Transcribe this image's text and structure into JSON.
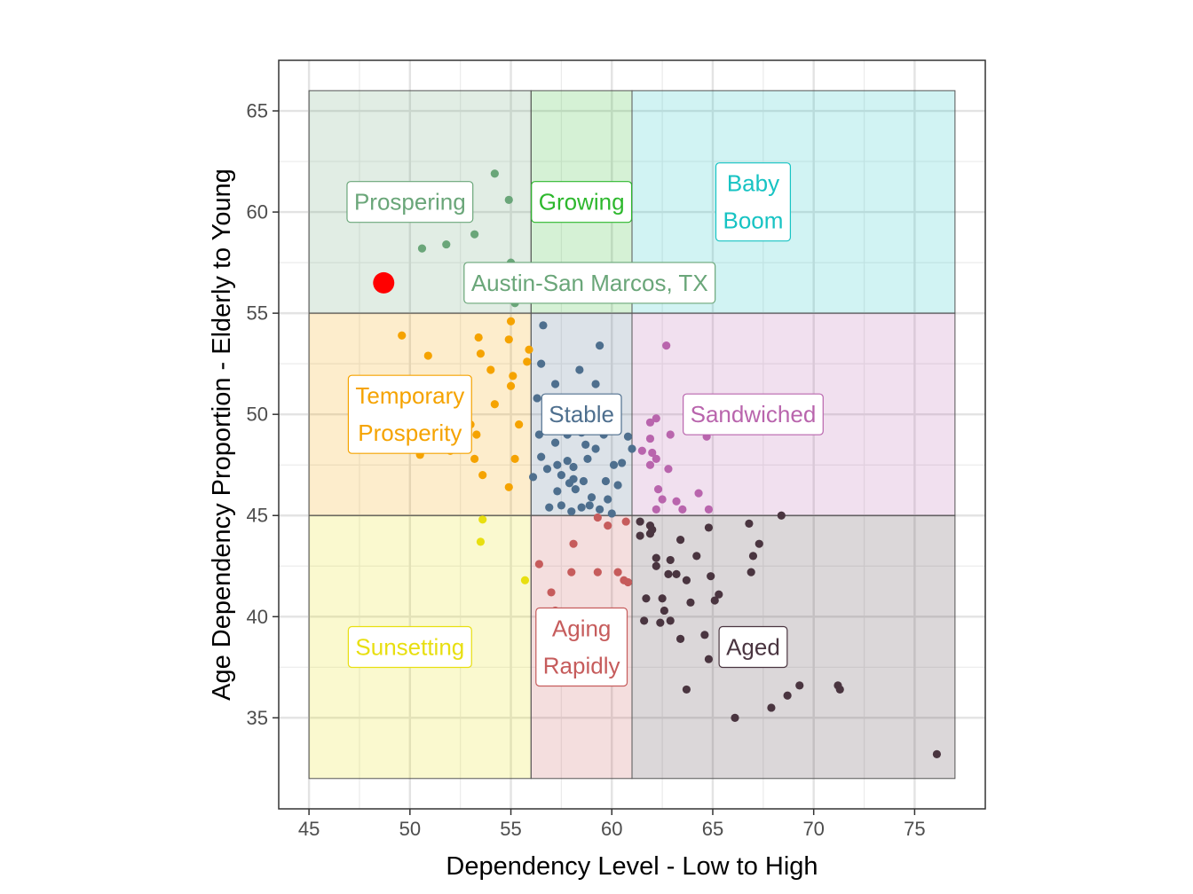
{
  "chart_data": {
    "type": "scatter",
    "title": "",
    "xlabel": "Dependency Level - Low to High",
    "ylabel": "Age Dependency Proportion - Elderly to Young",
    "xlim": [
      43.5,
      78.5
    ],
    "ylim": [
      30.5,
      67.5
    ],
    "xticks": [
      45,
      50,
      55,
      60,
      65,
      70,
      75
    ],
    "yticks": [
      35,
      40,
      45,
      50,
      55,
      60,
      65
    ],
    "grid": true,
    "regions": [
      {
        "label": "Prospering",
        "color": "#6aa679",
        "x": [
          45,
          56
        ],
        "y": [
          55,
          66
        ],
        "label_pos": [
          50,
          60.5
        ],
        "label_lines": [
          "Prospering"
        ]
      },
      {
        "label": "Growing",
        "color": "#2db82d",
        "x": [
          56,
          61
        ],
        "y": [
          55,
          66
        ],
        "label_pos": [
          58.5,
          60.5
        ],
        "label_lines": [
          "Growing"
        ]
      },
      {
        "label": "Baby Boom",
        "color": "#17c3c3",
        "x": [
          61,
          77
        ],
        "y": [
          55,
          66
        ],
        "label_pos": [
          67,
          60.5
        ],
        "label_lines": [
          "Baby",
          "Boom"
        ]
      },
      {
        "label": "Temporary Prosperity",
        "color": "#f5a300",
        "x": [
          45,
          56
        ],
        "y": [
          45,
          55
        ],
        "label_pos": [
          50,
          50
        ],
        "label_lines": [
          "Temporary",
          "Prosperity"
        ]
      },
      {
        "label": "Stable",
        "color": "#4e6f8e",
        "x": [
          56,
          61
        ],
        "y": [
          45,
          55
        ],
        "label_pos": [
          58.5,
          50
        ],
        "label_lines": [
          "Stable"
        ]
      },
      {
        "label": "Sandwiched",
        "color": "#b965ad",
        "x": [
          61,
          77
        ],
        "y": [
          45,
          55
        ],
        "label_pos": [
          67,
          50
        ],
        "label_lines": [
          "Sandwiched"
        ]
      },
      {
        "label": "Sunsetting",
        "color": "#e8df10",
        "x": [
          45,
          56
        ],
        "y": [
          32,
          45
        ],
        "label_pos": [
          50,
          38.5
        ],
        "label_lines": [
          "Sunsetting"
        ]
      },
      {
        "label": "Aging Rapidly",
        "color": "#c65c5c",
        "x": [
          56,
          61
        ],
        "y": [
          32,
          45
        ],
        "label_pos": [
          58.5,
          38.5
        ],
        "label_lines": [
          "Aging",
          "Rapidly"
        ]
      },
      {
        "label": "Aged",
        "color": "#4a3540",
        "x": [
          61,
          77
        ],
        "y": [
          32,
          45
        ],
        "label_pos": [
          67,
          38.5
        ],
        "label_lines": [
          "Aged"
        ]
      }
    ],
    "highlight": {
      "label": "Austin-San Marcos, TX",
      "x": 48.7,
      "y": 56.5,
      "color": "#ff0000",
      "label_color": "#6aa679",
      "label_pos": [
        58.9,
        56.5
      ]
    },
    "series": [
      {
        "name": "Prospering",
        "color": "#6aa679",
        "points": [
          [
            54.2,
            61.9
          ],
          [
            54.9,
            60.6
          ],
          [
            53.2,
            58.9
          ],
          [
            51.8,
            58.4
          ],
          [
            50.6,
            58.2
          ],
          [
            55.0,
            57.5
          ],
          [
            55.1,
            57.0
          ],
          [
            55.2,
            55.5
          ]
        ]
      },
      {
        "name": "Temporary Prosperity",
        "color": "#f5a300",
        "points": [
          [
            49.6,
            53.9
          ],
          [
            53.4,
            53.8
          ],
          [
            54.9,
            53.7
          ],
          [
            55.0,
            54.6
          ],
          [
            55.9,
            53.2
          ],
          [
            53.5,
            53.0
          ],
          [
            50.9,
            52.9
          ],
          [
            55.8,
            52.6
          ],
          [
            54.0,
            52.2
          ],
          [
            55.1,
            51.9
          ],
          [
            55.0,
            51.4
          ],
          [
            54.2,
            50.5
          ],
          [
            52.0,
            50.1
          ],
          [
            50.8,
            49.3
          ],
          [
            53.3,
            49.0
          ],
          [
            51.4,
            48.5
          ],
          [
            52.0,
            48.2
          ],
          [
            50.5,
            48.0
          ],
          [
            53.2,
            47.8
          ],
          [
            55.2,
            47.8
          ],
          [
            53.6,
            47.0
          ],
          [
            54.9,
            46.4
          ],
          [
            55.4,
            49.5
          ],
          [
            53.0,
            49.5
          ],
          [
            52.6,
            49.8
          ]
        ]
      },
      {
        "name": "Stable",
        "color": "#4e6f8e",
        "points": [
          [
            56.6,
            54.4
          ],
          [
            59.4,
            53.4
          ],
          [
            56.5,
            52.5
          ],
          [
            58.4,
            52.2
          ],
          [
            57.2,
            51.5
          ],
          [
            59.2,
            51.5
          ],
          [
            56.3,
            50.8
          ],
          [
            57.8,
            50.6
          ],
          [
            60.2,
            50.7
          ],
          [
            56.9,
            50.4
          ],
          [
            58.5,
            50.6
          ],
          [
            59.5,
            50.2
          ],
          [
            57.1,
            49.9
          ],
          [
            58.9,
            49.8
          ],
          [
            56.4,
            49.0
          ],
          [
            56.8,
            49.2
          ],
          [
            57.8,
            49.0
          ],
          [
            58.5,
            49.1
          ],
          [
            59.6,
            49.0
          ],
          [
            60.8,
            48.9
          ],
          [
            57.2,
            48.6
          ],
          [
            58.7,
            48.5
          ],
          [
            59.2,
            48.3
          ],
          [
            61.0,
            48.3
          ],
          [
            56.5,
            47.9
          ],
          [
            57.8,
            47.7
          ],
          [
            58.8,
            47.8
          ],
          [
            57.3,
            47.5
          ],
          [
            58.1,
            47.4
          ],
          [
            60.1,
            47.5
          ],
          [
            60.5,
            47.6
          ],
          [
            56.8,
            47.3
          ],
          [
            57.5,
            47.0
          ],
          [
            58.1,
            46.8
          ],
          [
            56.1,
            46.9
          ],
          [
            57.9,
            46.6
          ],
          [
            58.6,
            46.7
          ],
          [
            59.7,
            46.7
          ],
          [
            60.3,
            46.5
          ],
          [
            57.3,
            46.2
          ],
          [
            58.2,
            46.3
          ],
          [
            59.0,
            45.9
          ],
          [
            59.8,
            45.8
          ],
          [
            56.9,
            45.4
          ],
          [
            57.5,
            45.5
          ],
          [
            58.0,
            45.2
          ],
          [
            58.5,
            45.4
          ],
          [
            59.4,
            45.3
          ],
          [
            60.0,
            45.1
          ],
          [
            58.9,
            45.5
          ]
        ]
      },
      {
        "name": "Sandwiched",
        "color": "#b965ad",
        "points": [
          [
            62.7,
            53.4
          ],
          [
            62.2,
            49.8
          ],
          [
            61.9,
            49.6
          ],
          [
            62.9,
            49.0
          ],
          [
            64.7,
            48.9
          ],
          [
            61.9,
            48.8
          ],
          [
            61.5,
            48.2
          ],
          [
            62.0,
            48.1
          ],
          [
            62.2,
            47.8
          ],
          [
            61.9,
            47.5
          ],
          [
            62.8,
            47.3
          ],
          [
            62.3,
            46.3
          ],
          [
            64.3,
            46.1
          ],
          [
            62.5,
            45.8
          ],
          [
            64.8,
            45.3
          ],
          [
            62.2,
            45.3
          ],
          [
            63.5,
            45.3
          ],
          [
            63.2,
            45.7
          ]
        ]
      },
      {
        "name": "Sunsetting",
        "color": "#e8df10",
        "points": [
          [
            53.6,
            44.8
          ],
          [
            53.5,
            43.7
          ],
          [
            55.7,
            41.8
          ]
        ]
      },
      {
        "name": "Aging Rapidly",
        "color": "#c65c5c",
        "points": [
          [
            59.3,
            44.9
          ],
          [
            60.7,
            44.7
          ],
          [
            59.8,
            44.5
          ],
          [
            58.1,
            43.6
          ],
          [
            56.4,
            42.6
          ],
          [
            58.0,
            42.2
          ],
          [
            59.3,
            42.2
          ],
          [
            60.3,
            42.2
          ],
          [
            60.6,
            41.8
          ],
          [
            60.8,
            41.7
          ],
          [
            57.0,
            41.2
          ],
          [
            57.2,
            40.3
          ]
        ]
      },
      {
        "name": "Aged",
        "color": "#4a3540",
        "points": [
          [
            68.4,
            45.0
          ],
          [
            61.4,
            44.7
          ],
          [
            66.8,
            44.6
          ],
          [
            61.9,
            44.5
          ],
          [
            62.0,
            44.3
          ],
          [
            61.4,
            44.0
          ],
          [
            61.9,
            44.1
          ],
          [
            64.8,
            44.4
          ],
          [
            63.4,
            43.8
          ],
          [
            67.3,
            43.6
          ],
          [
            62.2,
            42.9
          ],
          [
            62.9,
            42.8
          ],
          [
            64.2,
            43.0
          ],
          [
            67.0,
            43.0
          ],
          [
            62.2,
            42.5
          ],
          [
            62.8,
            42.1
          ],
          [
            63.2,
            42.1
          ],
          [
            64.9,
            42.0
          ],
          [
            65.1,
            40.8
          ],
          [
            66.9,
            42.2
          ],
          [
            63.7,
            41.8
          ],
          [
            65.3,
            41.1
          ],
          [
            61.7,
            40.9
          ],
          [
            62.5,
            40.9
          ],
          [
            63.9,
            40.7
          ],
          [
            62.6,
            40.3
          ],
          [
            61.6,
            39.8
          ],
          [
            62.4,
            39.7
          ],
          [
            62.9,
            39.8
          ],
          [
            64.6,
            39.1
          ],
          [
            63.4,
            38.9
          ],
          [
            66.0,
            38.9
          ],
          [
            65.7,
            38.5
          ],
          [
            64.8,
            37.9
          ],
          [
            63.7,
            36.4
          ],
          [
            69.3,
            36.6
          ],
          [
            71.2,
            36.6
          ],
          [
            71.3,
            36.4
          ],
          [
            68.7,
            36.1
          ],
          [
            67.9,
            35.5
          ],
          [
            66.1,
            35.0
          ],
          [
            76.1,
            33.2
          ]
        ]
      }
    ]
  }
}
